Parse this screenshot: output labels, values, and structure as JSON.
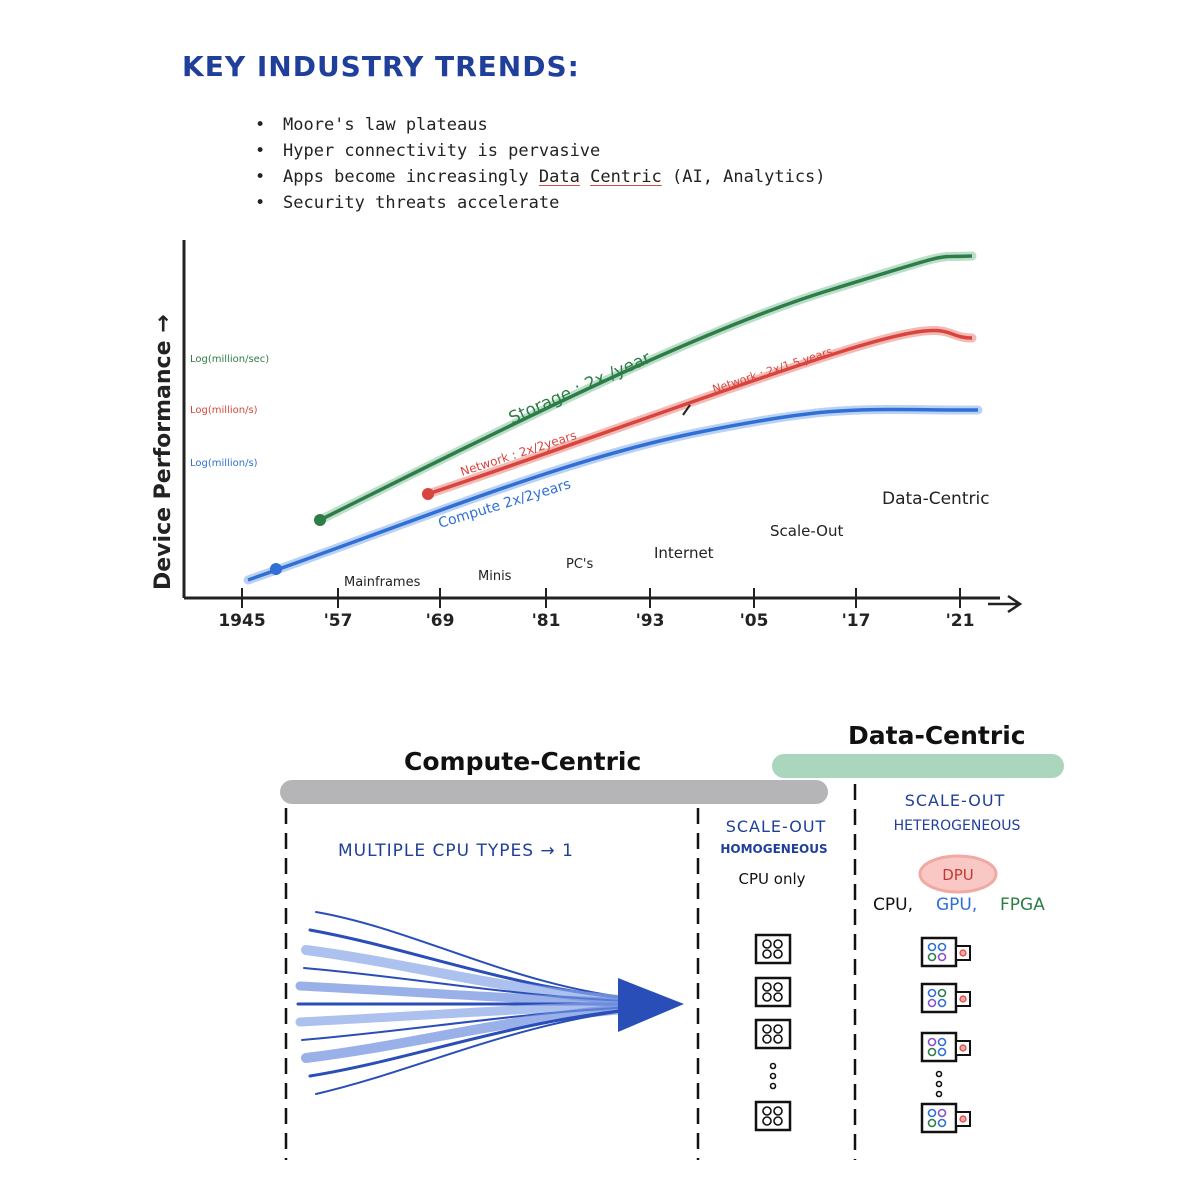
{
  "title": "KEY INDUSTRY TRENDS:",
  "bullets": [
    "Moore's law plateaus",
    "Hyper connectivity is pervasive",
    "Apps become increasingly",
    "Security threats accelerate"
  ],
  "bullet3": {
    "data": "Data",
    "centric": "Centric",
    "rest": "(AI, Analytics)"
  },
  "chart": {
    "y_axis_label": "Device Performance →",
    "y_units": [
      "Log(million/sec)",
      "Log(million/s)",
      "Log(million/s)"
    ],
    "curve_labels": {
      "storage": "Storage : 2x /year",
      "network": "Network : 2x/2years",
      "network_later": "Network : 2x/1.5 years",
      "compute": "Compute 2x/2years"
    },
    "eras": [
      "Mainframes",
      "Minis",
      "PC's",
      "Internet",
      "Scale-Out",
      "Data-Centric"
    ],
    "x_ticks": [
      "1945",
      "'57",
      "'69",
      "'81",
      "'93",
      "'05",
      "'17",
      "'21"
    ]
  },
  "bottom": {
    "compute_centric": "Compute-Centric",
    "data_centric": "Data-Centric",
    "multiple_cpu": "MULTIPLE CPU TYPES → 1",
    "scale_out": "SCALE-OUT",
    "homogeneous": "HOMOGENEOUS",
    "cpu_only": "CPU only",
    "scale_out_2": "SCALE-OUT",
    "heterogeneous": "HETEROGENEOUS",
    "dpu": "DPU",
    "cpu": "CPU,",
    "gpu": "GPU,",
    "fpga": "FPGA"
  },
  "colors": {
    "title": "#1f3f9a",
    "storage": "#2e7d46",
    "network": "#d9453e",
    "compute": "#2f6fd6",
    "gray_bar": "#b5b5b8",
    "green_bar": "#a9d6bd"
  }
}
